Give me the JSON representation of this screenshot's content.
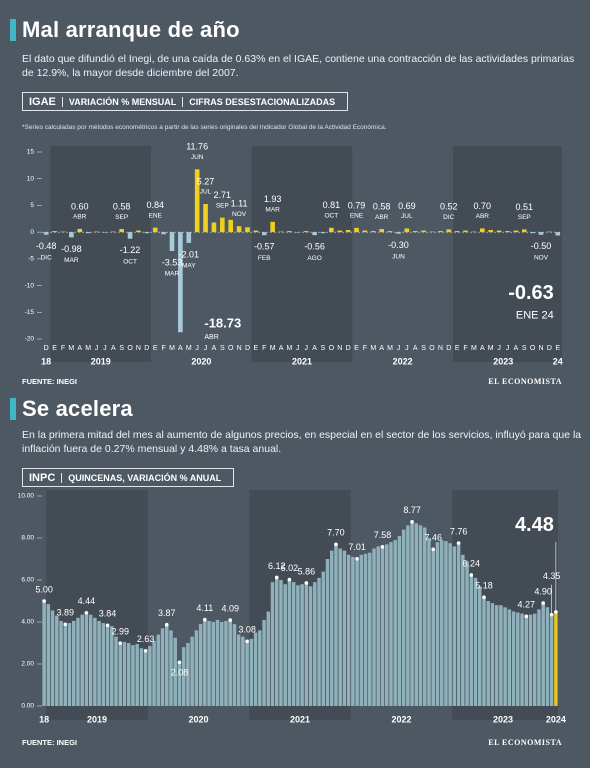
{
  "section1": {
    "title": "Mal arranque de año",
    "text": "El dato que difundió el Inegi, de una caída de 0.63% en el IGAE, contiene una contracción de las actividades primarias de 12.9%, la mayor desde diciembre del 2007.",
    "header": [
      "IGAE",
      "VARIACIÓN % MENSUAL",
      "CIFRAS DESESTACIONALIZADAS"
    ],
    "note": "*Series calculadas por métodos econométricos a partir de las series originales del Indicador Global de la Actividad Económica.",
    "source": "FUENTE: INEGI",
    "logo": "EL ECONOMISTA"
  },
  "section2": {
    "title": "Se acelera",
    "text": "En la primera mitad del mes al aumento de algunos precios, en especial en el sector de los servicios, influyó para que la inflación fuera de 0.27% mensual y 4.48% a tasa anual.",
    "header": [
      "INPC",
      "QUINCENAS, VARIACIÓN % ANUAL"
    ],
    "source": "FUENTE: INEGI",
    "logo": "EL ECONOMISTA"
  },
  "chart_data": [
    {
      "type": "bar",
      "categories": [
        "D",
        "E",
        "F",
        "M",
        "A",
        "M",
        "J",
        "J",
        "A",
        "S",
        "O",
        "N",
        "D",
        "E",
        "F",
        "M",
        "A",
        "M",
        "J",
        "J",
        "A",
        "S",
        "O",
        "N",
        "D",
        "E",
        "F",
        "M",
        "A",
        "M",
        "J",
        "J",
        "A",
        "S",
        "O",
        "N",
        "D",
        "E",
        "F",
        "M",
        "A",
        "M",
        "J",
        "J",
        "A",
        "S",
        "O",
        "N",
        "D",
        "E",
        "F",
        "M",
        "A",
        "M",
        "J",
        "J",
        "A",
        "S",
        "O",
        "N",
        "D",
        "E"
      ],
      "year_labels": [
        "18",
        "2019",
        "2020",
        "2021",
        "2022",
        "2023",
        "24"
      ],
      "values": [
        -0.48,
        0.2,
        0.1,
        -0.98,
        0.6,
        -0.2,
        0.1,
        -0.1,
        0.1,
        0.58,
        -1.22,
        0.3,
        -0.2,
        0.84,
        -0.4,
        -3.53,
        -18.73,
        -2.01,
        11.76,
        5.27,
        1.8,
        2.71,
        2.3,
        1.11,
        0.9,
        0.3,
        -0.57,
        1.93,
        0.1,
        0.2,
        -0.1,
        0.2,
        -0.56,
        -0.2,
        0.81,
        0.3,
        0.4,
        0.79,
        0.3,
        0.2,
        0.58,
        0.2,
        -0.3,
        0.69,
        0.2,
        0.3,
        0.1,
        0.2,
        0.52,
        0.2,
        0.3,
        0.1,
        0.7,
        0.4,
        0.3,
        0.2,
        0.3,
        0.51,
        -0.2,
        -0.5,
        0.1,
        -0.63
      ],
      "value_labels": [
        "-0.48",
        null,
        null,
        "-0.98",
        "0.60",
        null,
        null,
        null,
        null,
        "0.58",
        "-1.22",
        null,
        null,
        "0.84",
        null,
        "-3.53",
        "-18.73",
        "-2.01",
        "11.76",
        "5.27",
        null,
        "2.71",
        null,
        "1.11",
        null,
        null,
        "-0.57",
        "1.93",
        null,
        null,
        null,
        null,
        "-0.56",
        null,
        "0.81",
        null,
        null,
        "0.79",
        null,
        null,
        "0.58",
        null,
        "-0.30",
        "0.69",
        null,
        null,
        null,
        null,
        "0.52",
        null,
        null,
        null,
        "0.70",
        null,
        null,
        null,
        null,
        "0.51",
        null,
        "-0.50",
        null,
        "-0.63"
      ],
      "point_labels": [
        "DIC",
        null,
        null,
        "MAR",
        "ABR",
        null,
        null,
        null,
        null,
        "SEP",
        "OCT",
        null,
        null,
        "ENE",
        null,
        "MAR",
        "ABR",
        "MAY",
        "JUN",
        "JUL",
        null,
        "SEP",
        null,
        "NOV",
        null,
        null,
        "FEB",
        "MAR",
        null,
        null,
        null,
        null,
        "AGO",
        null,
        "OCT",
        null,
        null,
        "ENE",
        null,
        null,
        "ABR",
        null,
        "JUN",
        "JUL",
        null,
        null,
        null,
        null,
        "DIC",
        null,
        null,
        null,
        "ABR",
        null,
        null,
        null,
        null,
        "SEP",
        null,
        "NOV",
        null,
        "ENE 24"
      ],
      "color": "#f0cf1e",
      "negative_color": "#a9cbd9",
      "ylim": [
        -20,
        15
      ],
      "yticks": [
        15,
        10,
        5,
        0,
        -5,
        -10,
        -15,
        -20
      ]
    },
    {
      "type": "bar",
      "year_labels": [
        "18",
        "2019",
        "2020",
        "2021",
        "2022",
        "2023",
        "2024"
      ],
      "values": [
        5.0,
        4.85,
        4.55,
        4.3,
        4.05,
        3.89,
        3.95,
        4.05,
        4.2,
        4.35,
        4.44,
        4.35,
        4.2,
        4.05,
        3.95,
        3.84,
        3.8,
        3.3,
        2.99,
        3.05,
        3.0,
        2.9,
        2.95,
        2.75,
        2.63,
        2.85,
        3.1,
        3.4,
        3.7,
        3.87,
        3.6,
        3.25,
        2.08,
        2.8,
        3.0,
        3.3,
        3.6,
        3.9,
        4.11,
        4.05,
        4.0,
        4.1,
        4.0,
        4.05,
        4.09,
        3.9,
        3.4,
        3.3,
        3.08,
        3.2,
        3.5,
        3.6,
        4.1,
        4.5,
        5.9,
        6.12,
        6.0,
        5.8,
        6.02,
        5.9,
        5.75,
        5.8,
        5.86,
        5.7,
        5.9,
        6.1,
        6.4,
        7.0,
        7.4,
        7.7,
        7.5,
        7.4,
        7.2,
        7.1,
        7.01,
        7.2,
        7.25,
        7.3,
        7.5,
        7.6,
        7.58,
        7.7,
        7.8,
        7.9,
        8.1,
        8.4,
        8.6,
        8.77,
        8.7,
        8.6,
        8.5,
        8.0,
        7.46,
        7.8,
        7.9,
        7.85,
        7.75,
        7.6,
        7.76,
        7.2,
        6.9,
        6.24,
        6.1,
        5.7,
        5.18,
        5.0,
        4.9,
        4.8,
        4.8,
        4.7,
        4.6,
        4.5,
        4.45,
        4.4,
        4.27,
        4.35,
        4.4,
        4.6,
        4.9,
        4.7,
        4.35,
        4.48
      ],
      "value_labels": [
        "5.00",
        null,
        null,
        null,
        null,
        "3.89",
        null,
        null,
        null,
        null,
        "4.44",
        null,
        null,
        null,
        null,
        "3.84",
        null,
        null,
        "2.99",
        null,
        null,
        null,
        null,
        null,
        "2.63",
        null,
        null,
        null,
        null,
        "3.87",
        null,
        null,
        "2.08",
        null,
        null,
        null,
        null,
        null,
        "4.11",
        null,
        null,
        null,
        null,
        null,
        "4.09",
        null,
        null,
        null,
        "3.08",
        null,
        null,
        null,
        null,
        null,
        null,
        "6.12",
        null,
        null,
        "6.02",
        null,
        null,
        null,
        "5.86",
        null,
        null,
        null,
        null,
        null,
        null,
        "7.70",
        null,
        null,
        null,
        null,
        "7.01",
        null,
        null,
        null,
        null,
        null,
        "7.58",
        null,
        null,
        null,
        null,
        null,
        null,
        "8.77",
        null,
        null,
        null,
        null,
        "7.46",
        null,
        null,
        null,
        null,
        null,
        "7.76",
        null,
        null,
        "6.24",
        null,
        null,
        "5.18",
        null,
        null,
        null,
        null,
        null,
        null,
        null,
        null,
        null,
        "4.27",
        null,
        null,
        null,
        "4.90",
        null,
        "4.35",
        "4.48"
      ],
      "color": "#8fb1bb",
      "highlight_color": "#e8c61a",
      "ylim": [
        0,
        10
      ],
      "yticks": [
        {
          "value": 0,
          "label": "0.00"
        },
        {
          "value": 2,
          "label": "2.00"
        },
        {
          "value": 4,
          "label": "4.00"
        },
        {
          "value": 6,
          "label": "6.00"
        },
        {
          "value": 8,
          "label": "8.00"
        },
        {
          "value": 10,
          "label": "10.00"
        }
      ]
    }
  ]
}
